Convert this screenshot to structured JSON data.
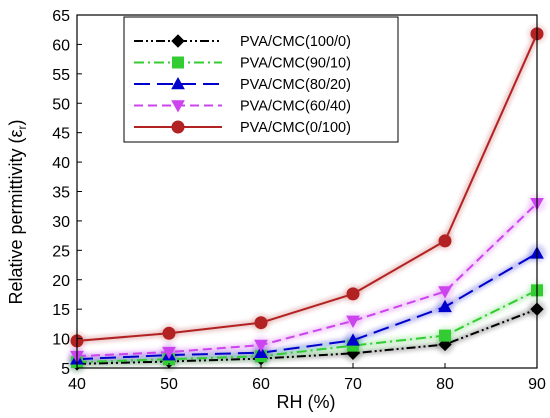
{
  "chart_data": {
    "type": "line",
    "xlabel": "RH (%)",
    "ylabel_main": "Relative permittivity (",
    "ylabel_symbol": "ε",
    "ylabel_sub": "r",
    "ylabel_close": ")",
    "xlim": [
      40,
      90
    ],
    "ylim": [
      5,
      65
    ],
    "x_ticks": [
      40,
      50,
      60,
      70,
      80,
      90
    ],
    "y_ticks": [
      5,
      10,
      15,
      20,
      25,
      30,
      35,
      40,
      45,
      50,
      55,
      60,
      65
    ],
    "grid": false,
    "legend_position": "top-left",
    "x": [
      40,
      50,
      60,
      70,
      80,
      90
    ],
    "series": [
      {
        "name": "PVA/CMC(100/0)",
        "values": [
          5.7,
          6.1,
          6.6,
          7.5,
          9.0,
          15.0
        ],
        "color": "#000000",
        "marker": "diamond",
        "dash": "dash-dot-dot"
      },
      {
        "name": "PVA/CMC(90/10)",
        "values": [
          6.0,
          6.5,
          7.0,
          8.8,
          10.5,
          18.2
        ],
        "color": "#33cc33",
        "marker": "square",
        "dash": "dash-dot"
      },
      {
        "name": "PVA/CMC(80/20)",
        "values": [
          6.5,
          7.2,
          7.6,
          9.7,
          15.4,
          24.5
        ],
        "color": "#0000cc",
        "marker": "triangle",
        "dash": "long-dash"
      },
      {
        "name": "PVA/CMC(60/40)",
        "values": [
          7.0,
          7.7,
          8.9,
          13.0,
          18.0,
          33.0
        ],
        "color": "#cc44ee",
        "marker": "triangle-down",
        "dash": "dash"
      },
      {
        "name": "PVA/CMC(0/100)",
        "values": [
          9.6,
          10.9,
          12.7,
          17.6,
          26.6,
          61.8
        ],
        "color": "#b22222",
        "marker": "circle",
        "dash": "solid"
      }
    ]
  }
}
